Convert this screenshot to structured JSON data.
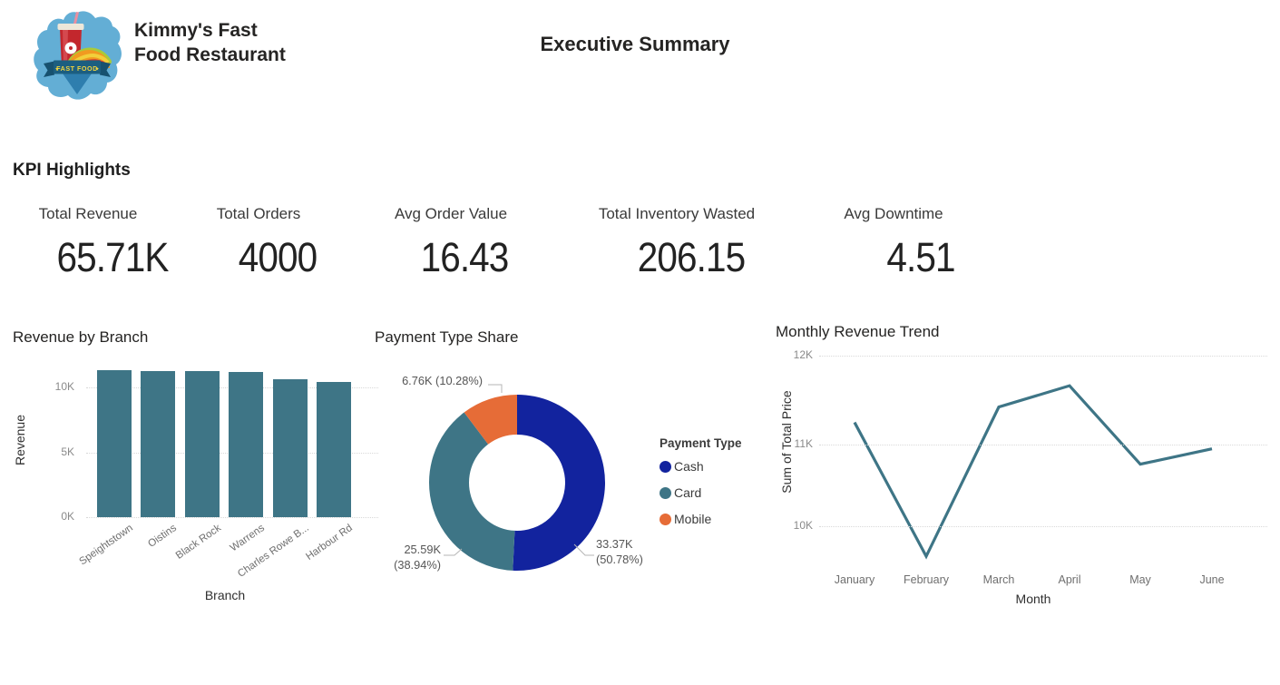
{
  "header": {
    "brand_line1": "Kimmy's Fast",
    "brand_line2": "Food Restaurant",
    "logo_banner_text": "FAST FOOD",
    "page_title": "Executive Summary"
  },
  "kpi": {
    "section_title": "KPI Highlights",
    "cards": [
      {
        "label": "Total Revenue",
        "value": "65.71K"
      },
      {
        "label": "Total Orders",
        "value": "4000"
      },
      {
        "label": "Avg Order Value",
        "value": "16.43"
      },
      {
        "label": "Total Inventory Wasted",
        "value": "206.15"
      },
      {
        "label": "Avg Downtime",
        "value": "4.51"
      }
    ]
  },
  "chart_data": [
    {
      "type": "bar",
      "title": "Revenue by Branch",
      "xlabel": "Branch",
      "ylabel": "Revenue",
      "categories": [
        "Speightstown",
        "Oistins",
        "Black Rock",
        "Warrens",
        "Charles Rowe B...",
        "Harbour Rd"
      ],
      "values": [
        11350,
        11280,
        11260,
        11200,
        10620,
        10440
      ],
      "yticks": [
        "0K",
        "5K",
        "10K"
      ],
      "ylim": [
        0,
        11600
      ],
      "grid": true,
      "legend": "none"
    },
    {
      "type": "donut",
      "title": "Payment Type Share",
      "legend_title": "Payment Type",
      "legend_position": "right",
      "slices": [
        {
          "name": "Cash",
          "value": 33370,
          "value_label": "33.37K",
          "pct": 50.78,
          "pct_label": "(50.78%)",
          "color": "#12239E"
        },
        {
          "name": "Card",
          "value": 25590,
          "value_label": "25.59K",
          "pct": 38.94,
          "pct_label": "(38.94%)",
          "color": "#3E7586"
        },
        {
          "name": "Mobile",
          "value": 6760,
          "value_label": "6.76K",
          "pct": 10.28,
          "pct_label": "(10.28%)",
          "color": "#E66C37"
        }
      ]
    },
    {
      "type": "line",
      "title": "Monthly Revenue Trend",
      "xlabel": "Month",
      "ylabel": "Sum of Total Price",
      "x": [
        "January",
        "February",
        "March",
        "April",
        "May",
        "June"
      ],
      "values": [
        11260,
        9690,
        11440,
        11690,
        10770,
        10950
      ],
      "yticks": [
        "10K",
        "11K",
        "12K"
      ],
      "ylim": [
        9550,
        12100
      ],
      "grid": true,
      "legend": "none"
    }
  ],
  "colors": {
    "teal": "#3E7586",
    "navy": "#12239E",
    "orange": "#E66C37",
    "grid": "#D9D9D9",
    "tick_text": "#8A8A8A",
    "title_text": "#252423",
    "callout_text": "#555555",
    "leader_line": "#B5B5B5",
    "logo_blob": "#63AED5",
    "logo_banner": "#1C5E80"
  }
}
